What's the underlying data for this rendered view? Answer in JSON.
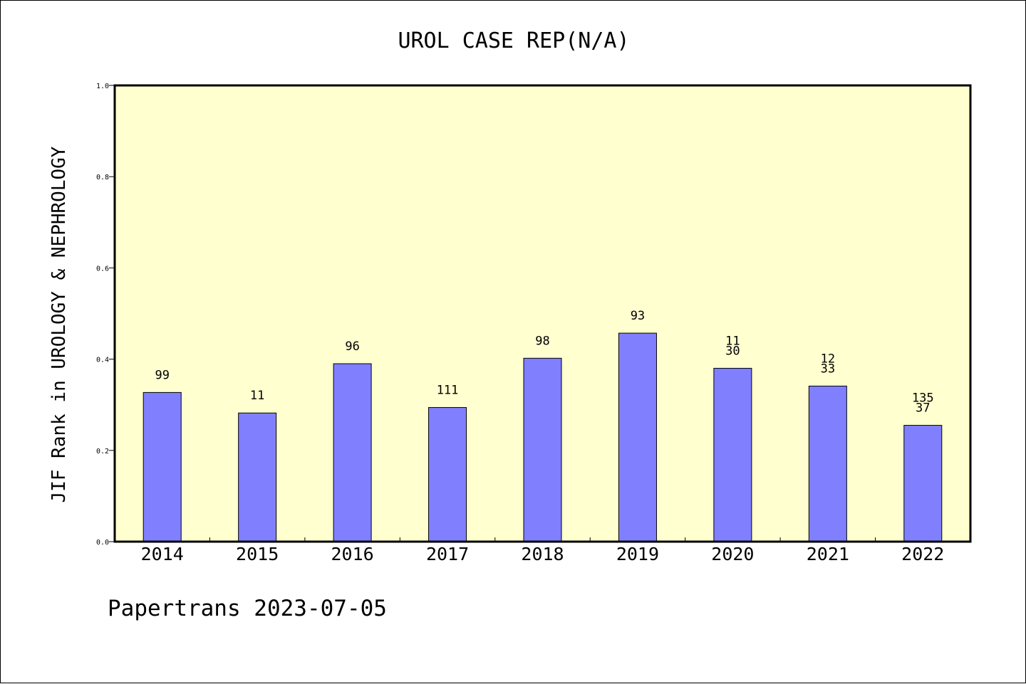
{
  "chart_data": {
    "type": "bar",
    "title": "UROL CASE REP(N/A)",
    "xlabel": "",
    "ylabel": "JIF Rank in UROLOGY & NEPHROLOGY",
    "ylim": [
      0,
      1.0
    ],
    "yticks": [
      "0.0",
      "0.2",
      "0.4",
      "0.6",
      "0.8",
      "1.0"
    ],
    "categories": [
      "2014",
      "2015",
      "2016",
      "2017",
      "2018",
      "2019",
      "2020",
      "2021",
      "2022"
    ],
    "values": [
      0.327,
      0.282,
      0.39,
      0.294,
      0.402,
      0.457,
      0.38,
      0.341,
      0.255
    ],
    "labels": [
      [
        "99"
      ],
      [
        "11"
      ],
      [
        "96"
      ],
      [
        "111"
      ],
      [
        "98"
      ],
      [
        "93"
      ],
      [
        "11",
        "30"
      ],
      [
        "12",
        "33"
      ],
      [
        "135",
        "37"
      ]
    ],
    "grid": false,
    "colors": {
      "plot_bg": "#ffffd0",
      "bar": "#8080ff",
      "bar_edge": "#000000"
    }
  },
  "footer": {
    "text": "Papertrans 2023-07-05"
  }
}
